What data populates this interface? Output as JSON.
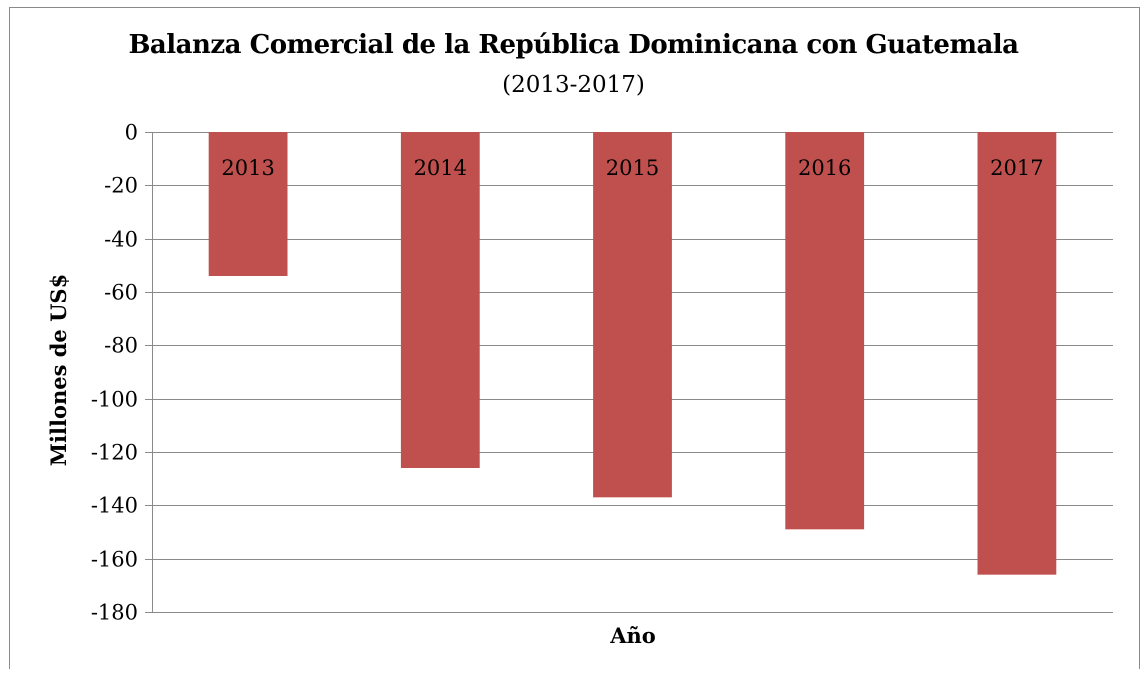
{
  "chart_data": {
    "type": "bar",
    "title": "Balanza Comercial de la República Dominicana con Guatemala",
    "subtitle": "(2013-2017)",
    "xlabel": "Año",
    "ylabel": "Millones de US$",
    "categories": [
      "2013",
      "2014",
      "2015",
      "2016",
      "2017"
    ],
    "values": [
      -54,
      -126,
      -137,
      -149,
      -166
    ],
    "ylim": [
      -180,
      0
    ],
    "yticks": [
      0,
      -20,
      -40,
      -60,
      -80,
      -100,
      -120,
      -140,
      -160,
      -180
    ],
    "ytick_labels": [
      "0",
      "-20",
      "-40",
      "-60",
      "-80",
      "-100",
      "-120",
      "-140",
      "-160",
      "-180"
    ],
    "bar_color": "#c0504d",
    "grid": true,
    "category_labels_position": "inside-top"
  }
}
